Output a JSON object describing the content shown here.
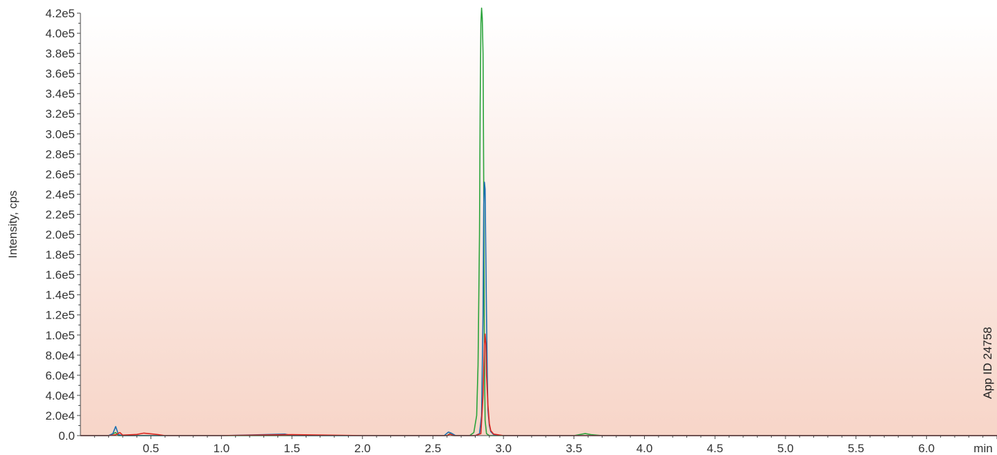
{
  "chart_data": {
    "type": "line",
    "title": "",
    "ylabel": "Intensity, cps",
    "x_unit_label": "min",
    "side_note": "App ID 24758",
    "xlim": [
      0.0,
      6.5
    ],
    "ylim": [
      0,
      420000
    ],
    "x_ticks": [
      0.5,
      1.0,
      1.5,
      2.0,
      2.5,
      3.0,
      3.5,
      4.0,
      4.5,
      5.0,
      5.5,
      6.0
    ],
    "x_tick_labels": [
      "0.5",
      "1.0",
      "1.5",
      "2.0",
      "2.5",
      "3.0",
      "3.5",
      "4.0",
      "4.5",
      "5.0",
      "5.5",
      "6.0"
    ],
    "y_ticks": [
      0,
      20000,
      40000,
      60000,
      80000,
      100000,
      120000,
      140000,
      160000,
      180000,
      200000,
      220000,
      240000,
      260000,
      280000,
      300000,
      320000,
      340000,
      360000,
      380000,
      400000,
      420000
    ],
    "y_tick_labels": [
      "0.0",
      "2.0e4",
      "4.0e4",
      "6.0e4",
      "8.0e4",
      "1.0e5",
      "1.2e5",
      "1.4e5",
      "1.6e5",
      "1.8e5",
      "2.0e5",
      "2.2e5",
      "2.4e5",
      "2.6e5",
      "2.8e5",
      "3.0e5",
      "3.2e5",
      "3.4e5",
      "3.6e5",
      "3.8e5",
      "4.0e5",
      "4.2e5"
    ],
    "grid": false,
    "background_gradient": [
      "#ffffff",
      "#f7d5c8"
    ],
    "series": [
      {
        "color": "#2aa33a",
        "x": [
          0.0,
          0.2,
          0.25,
          0.27,
          0.3,
          0.5,
          1.0,
          1.5,
          2.0,
          2.5,
          2.6,
          2.62,
          2.64,
          2.7,
          2.76,
          2.79,
          2.81,
          2.82,
          2.83,
          2.835,
          2.84,
          2.845,
          2.85,
          2.855,
          2.86,
          2.865,
          2.87,
          2.88,
          2.9,
          3.0,
          3.5,
          3.58,
          3.6,
          3.62,
          3.7,
          4.0,
          5.0,
          6.0,
          6.5
        ],
        "y": [
          0,
          0,
          3000,
          0,
          0,
          0,
          0,
          0,
          0,
          0,
          0,
          2000,
          0,
          0,
          0,
          3000,
          20000,
          70000,
          200000,
          330000,
          410000,
          425000,
          415000,
          380000,
          250000,
          80000,
          15000,
          2000,
          0,
          0,
          0,
          2000,
          1500,
          1000,
          0,
          0,
          0,
          0,
          0
        ]
      },
      {
        "color": "#1a6fb0",
        "x": [
          0.0,
          0.2,
          0.23,
          0.25,
          0.27,
          0.3,
          0.5,
          1.0,
          1.45,
          1.5,
          2.0,
          2.58,
          2.61,
          2.63,
          2.66,
          2.8,
          2.83,
          2.845,
          2.855,
          2.86,
          2.865,
          2.87,
          2.875,
          2.88,
          2.885,
          2.89,
          2.9,
          2.91,
          2.93,
          3.0,
          3.5,
          4.0,
          5.0,
          6.0,
          6.5
        ],
        "y": [
          0,
          0,
          2000,
          9000,
          1000,
          0,
          0,
          0,
          1500,
          0,
          0,
          0,
          3500,
          2500,
          0,
          0,
          2000,
          20000,
          120000,
          230000,
          252000,
          245000,
          180000,
          120000,
          60000,
          25000,
          10000,
          4000,
          1000,
          0,
          0,
          0,
          0,
          0,
          0
        ]
      },
      {
        "color": "#d9261f",
        "x": [
          0.0,
          0.2,
          0.25,
          0.28,
          0.3,
          0.4,
          0.45,
          0.5,
          0.55,
          0.6,
          1.0,
          1.5,
          2.0,
          2.6,
          2.62,
          2.65,
          2.8,
          2.84,
          2.855,
          2.865,
          2.87,
          2.875,
          2.88,
          2.89,
          2.9,
          2.91,
          2.93,
          3.0,
          3.5,
          4.0,
          5.0,
          6.0,
          6.5
        ],
        "y": [
          0,
          0,
          800,
          3000,
          500,
          1200,
          2500,
          1800,
          1000,
          0,
          0,
          1000,
          0,
          0,
          1500,
          0,
          0,
          2000,
          40000,
          90000,
          101000,
          92000,
          60000,
          30000,
          12000,
          5000,
          1500,
          0,
          0,
          0,
          0,
          0,
          0
        ]
      }
    ]
  }
}
